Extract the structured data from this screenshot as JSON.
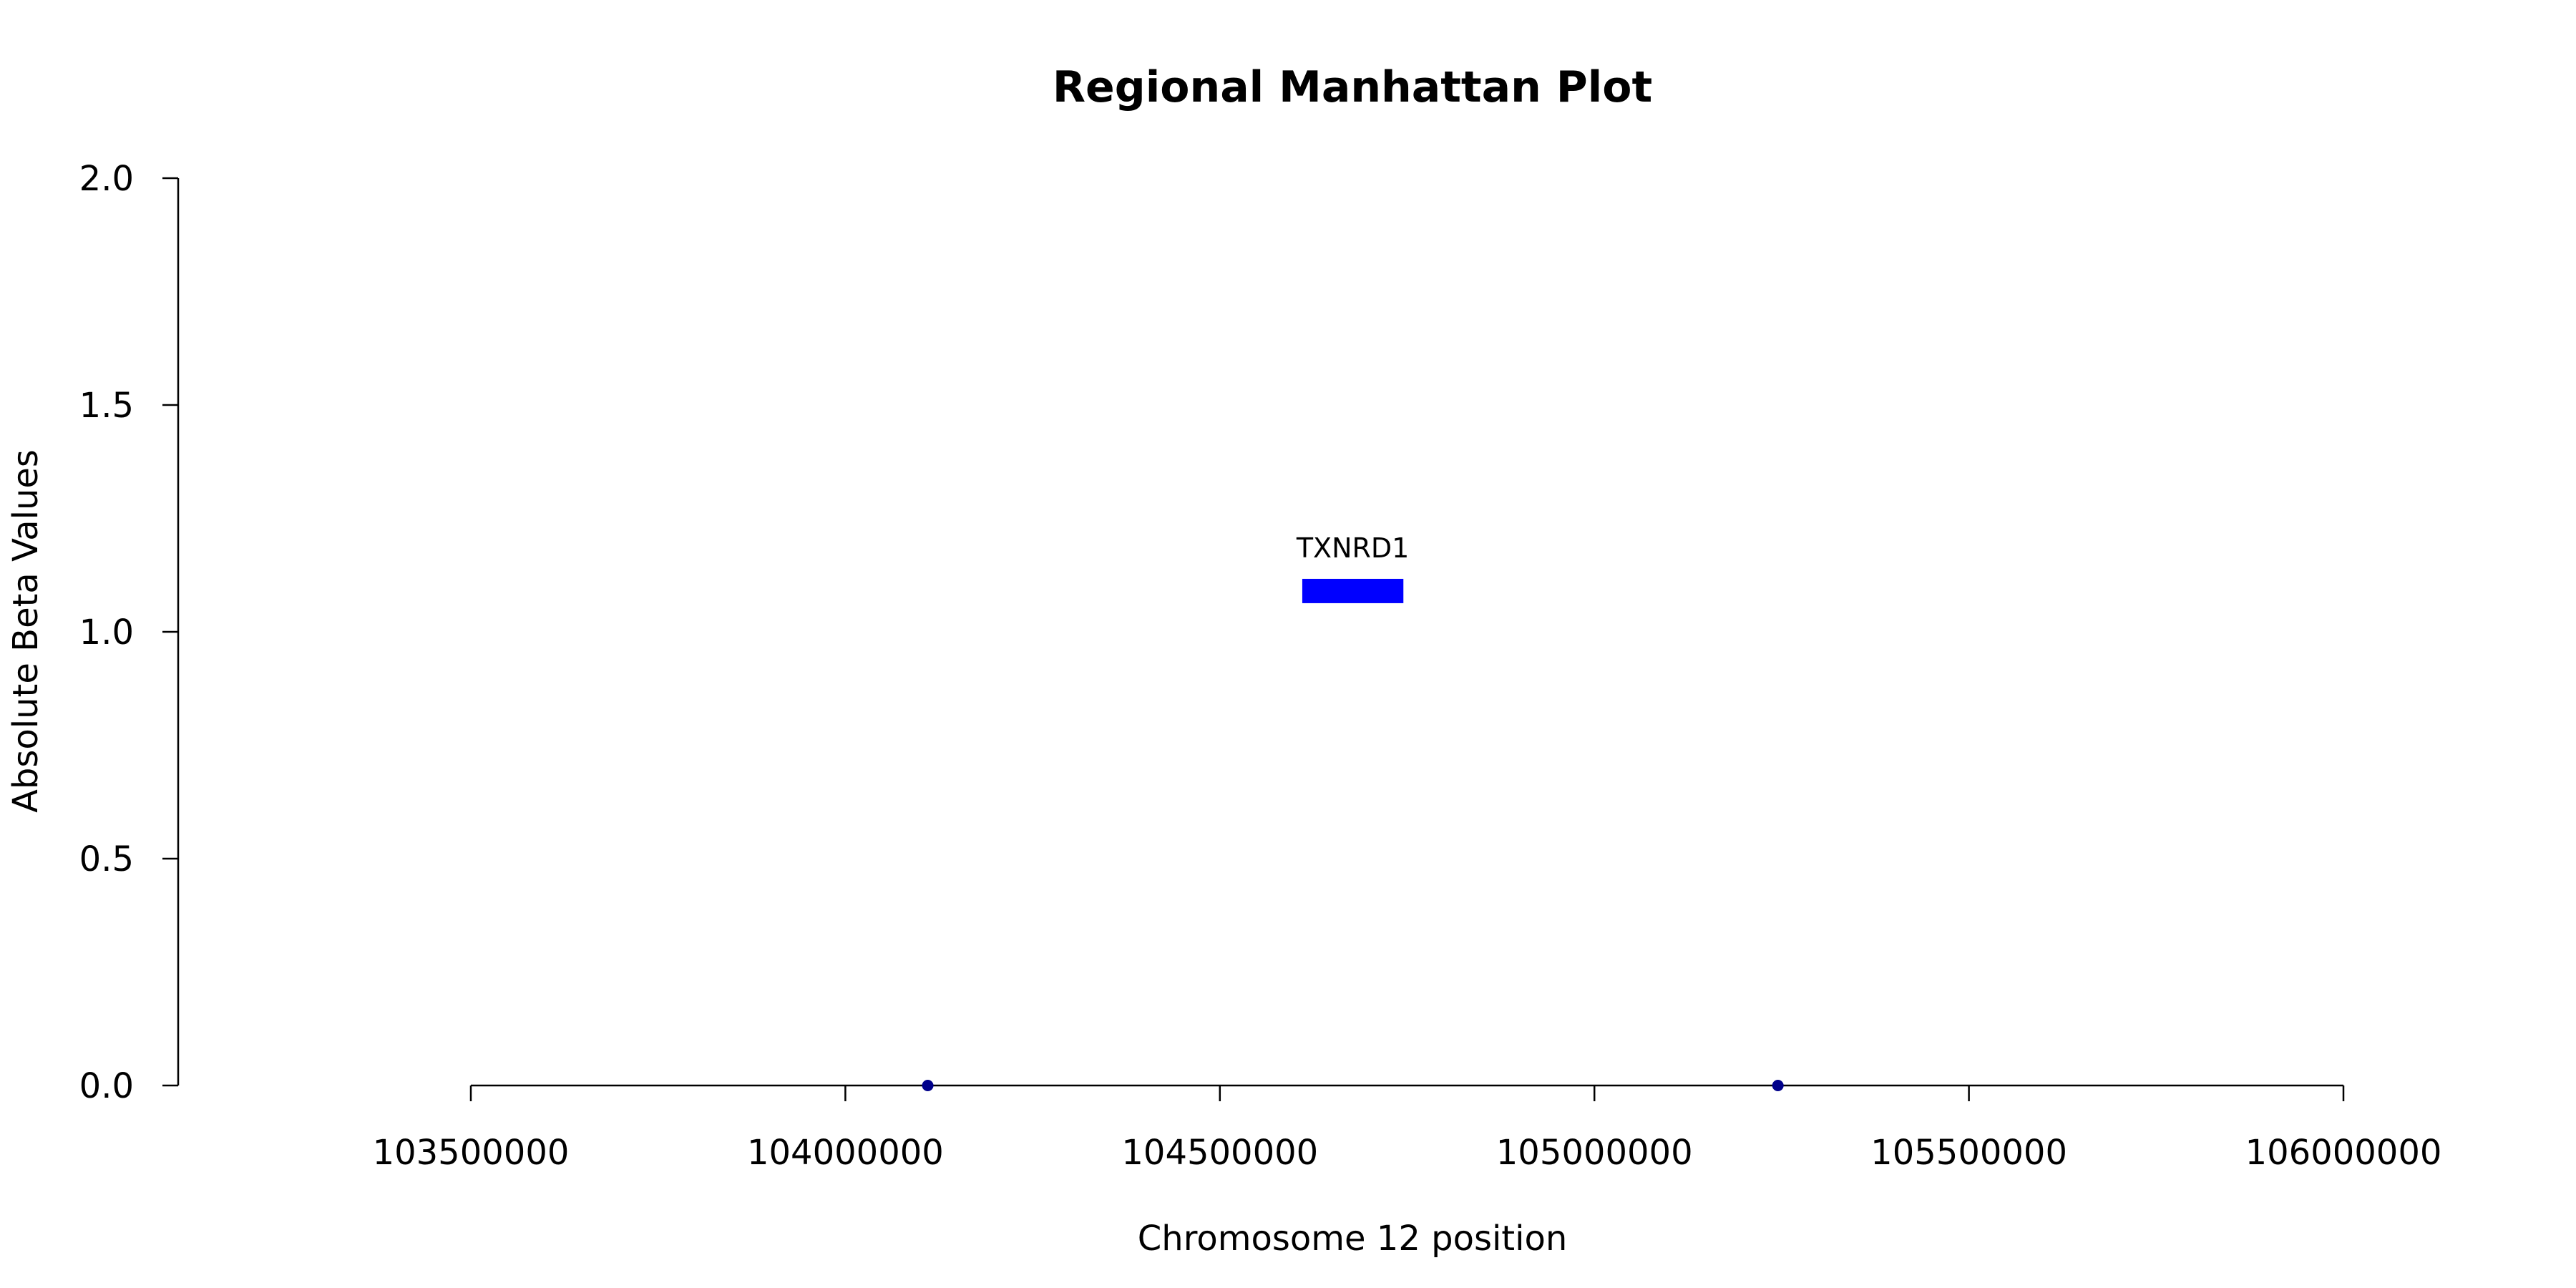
{
  "chart_data": {
    "type": "scatter",
    "title": "Regional Manhattan Plot",
    "xlabel": "Chromosome 12 position",
    "ylabel": "Absolute Beta Values",
    "xlim": [
      103500000,
      106000000
    ],
    "ylim": [
      0,
      2
    ],
    "x_ticks": [
      103500000,
      104000000,
      104500000,
      105000000,
      105500000,
      106000000
    ],
    "x_tick_labels": [
      "103500000",
      "104000000",
      "104500000",
      "105000000",
      "105500000",
      "106000000"
    ],
    "y_ticks": [
      0,
      0.5,
      1,
      1.5,
      2
    ],
    "y_tick_labels": [
      "0.0",
      "0.5",
      "1.0",
      "1.5",
      "2.0"
    ],
    "grid": false,
    "series": [
      {
        "color": "#00008B",
        "points": [
          {
            "x": 104110000,
            "y": 0.0
          },
          {
            "x": 105245000,
            "y": 0.0
          }
        ]
      }
    ],
    "genes": [
      {
        "name": "TXNRD1",
        "start": 104610000,
        "end": 104745000,
        "y": 1.09,
        "color": "#0000FF"
      }
    ]
  }
}
